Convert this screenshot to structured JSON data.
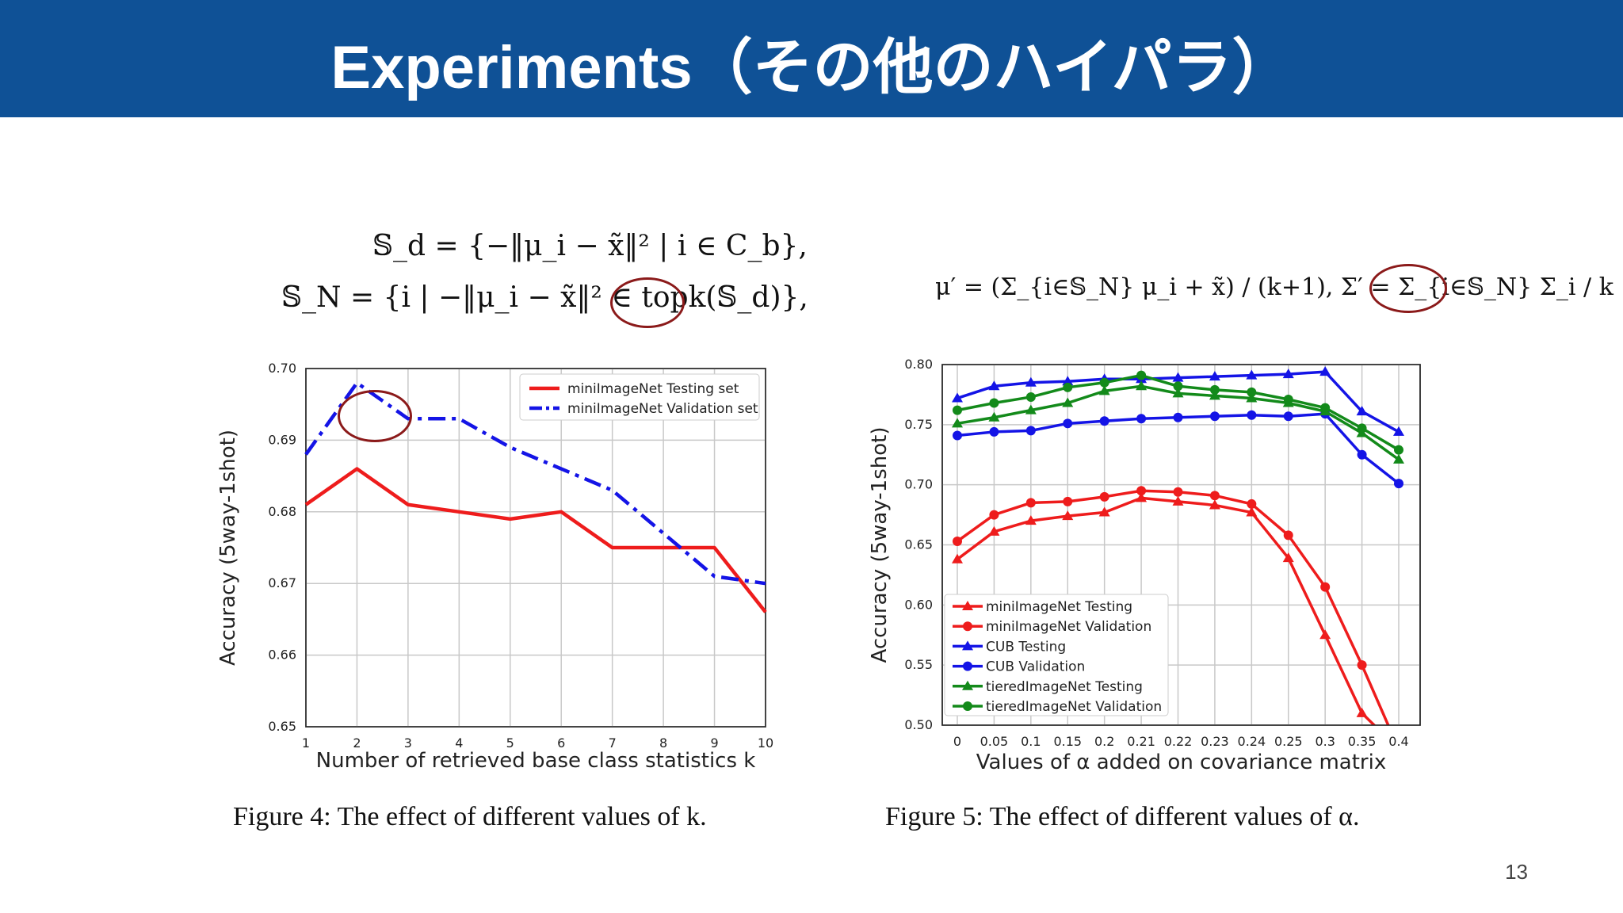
{
  "slide": {
    "title": "Experiments（その他のハイパラ）",
    "page_number": "13"
  },
  "equations": {
    "sd": "𝕊_d = {−‖μ_i − x̃‖² | i ∈ C_b},",
    "sn": "𝕊_N = {i | −‖μ_i − x̃‖² ∈ topk(𝕊_d)},",
    "mu": "μ′ = (Σ_{i∈𝕊_N} μ_i + x̃) / (k+1),  Σ′ = Σ_{i∈𝕊_N} Σ_i / k + α,"
  },
  "captions": {
    "fig4": "Figure 4: The effect of different values of k.",
    "fig5": "Figure 5: The effect of different values of α."
  },
  "colors": {
    "header": "#0f5196",
    "red": "#ee1c1c",
    "blue": "#1414e6",
    "green": "#138a1a",
    "annotation": "#8b1a1a"
  },
  "chart_data": [
    {
      "type": "line",
      "title": "",
      "xlabel": "Number of retrieved base class statistics k",
      "ylabel": "Accuracy (5way-1shot)",
      "x": [
        1,
        2,
        3,
        4,
        5,
        6,
        7,
        8,
        9,
        10
      ],
      "xlim": [
        1,
        10
      ],
      "ylim": [
        0.65,
        0.7
      ],
      "yticks": [
        "0.65",
        "0.66",
        "0.67",
        "0.68",
        "0.69",
        "0.70"
      ],
      "grid": true,
      "legend_position": "top-right",
      "series": [
        {
          "name": "miniImageNet Testing set",
          "color": "#ee1c1c",
          "style": "solid",
          "values": [
            0.681,
            0.686,
            0.681,
            0.68,
            0.679,
            0.68,
            0.675,
            0.675,
            0.675,
            0.666
          ]
        },
        {
          "name": "miniImageNet Validation set",
          "color": "#1414e6",
          "style": "dashdot",
          "values": [
            0.688,
            0.698,
            0.693,
            0.693,
            0.689,
            0.686,
            0.683,
            0.677,
            0.671,
            0.67
          ]
        }
      ]
    },
    {
      "type": "line",
      "title": "",
      "xlabel": "Values of α added on covariance matrix",
      "ylabel": "Accuracy (5way-1shot)",
      "categories": [
        "0",
        "0.05",
        "0.1",
        "0.15",
        "0.2",
        "0.21",
        "0.22",
        "0.23",
        "0.24",
        "0.25",
        "0.3",
        "0.35",
        "0.4"
      ],
      "ylim": [
        0.5,
        0.8
      ],
      "yticks": [
        "0.50",
        "0.55",
        "0.60",
        "0.65",
        "0.70",
        "0.75",
        "0.80"
      ],
      "grid": true,
      "legend_position": "lower-left",
      "series": [
        {
          "name": "miniImageNet Testing",
          "color": "#ee1c1c",
          "marker": "triangle",
          "values": [
            0.638,
            0.661,
            0.67,
            0.674,
            0.677,
            0.689,
            0.686,
            0.683,
            0.677,
            0.639,
            0.575,
            0.51,
            0.48
          ]
        },
        {
          "name": "miniImageNet Validation",
          "color": "#ee1c1c",
          "marker": "circle",
          "values": [
            0.653,
            0.675,
            0.685,
            0.686,
            0.69,
            0.695,
            0.694,
            0.691,
            0.684,
            0.658,
            0.615,
            0.55,
            0.48
          ]
        },
        {
          "name": "CUB Testing",
          "color": "#1414e6",
          "marker": "triangle",
          "values": [
            0.772,
            0.782,
            0.785,
            0.786,
            0.788,
            0.788,
            0.789,
            0.79,
            0.791,
            0.792,
            0.794,
            0.761,
            0.744
          ]
        },
        {
          "name": "CUB Validation",
          "color": "#1414e6",
          "marker": "circle",
          "values": [
            0.741,
            0.744,
            0.745,
            0.751,
            0.753,
            0.755,
            0.756,
            0.757,
            0.758,
            0.757,
            0.759,
            0.725,
            0.701
          ]
        },
        {
          "name": "tieredImageNet Testing",
          "color": "#138a1a",
          "marker": "triangle",
          "values": [
            0.751,
            0.756,
            0.762,
            0.768,
            0.778,
            0.782,
            0.776,
            0.774,
            0.772,
            0.768,
            0.761,
            0.743,
            0.721
          ]
        },
        {
          "name": "tieredImageNet Validation",
          "color": "#138a1a",
          "marker": "circle",
          "values": [
            0.762,
            0.768,
            0.773,
            0.781,
            0.785,
            0.791,
            0.782,
            0.779,
            0.777,
            0.771,
            0.764,
            0.747,
            0.729
          ]
        }
      ]
    }
  ]
}
